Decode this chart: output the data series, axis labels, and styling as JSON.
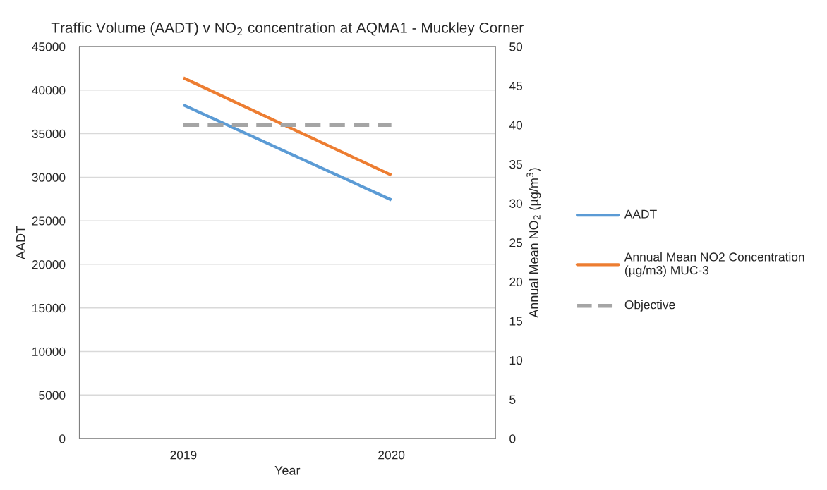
{
  "chart_data": {
    "type": "line",
    "title": "Traffic Volume (AADT) v NO$_{2}$ concentration at AQMA1 - Muckley Corner",
    "xlabel": "Year",
    "ylabel": "AADT",
    "y2label": "Annual Mean NO$_{2}$ (µg/m$^{3}$)",
    "categories": [
      "2019",
      "2020"
    ],
    "series": [
      {
        "name": "AADT",
        "color": "#5b9bd5",
        "values": [
          38300,
          27400
        ]
      },
      {
        "name": "Annual Mean NO2 Concentration (µg/m3) MUC-3",
        "color": "#ed7d31",
        "values": [
          46,
          33.6
        ],
        "axis": "y2"
      },
      {
        "name": "Objective",
        "color": "#a5a5a5",
        "values": [
          40,
          40
        ],
        "axis": "y2",
        "line_style": "dashed"
      }
    ],
    "ylim": [
      0,
      45000
    ],
    "yticks": [
      0,
      5000,
      10000,
      15000,
      20000,
      25000,
      30000,
      35000,
      40000,
      45000
    ],
    "y2lim": [
      0,
      50
    ],
    "y2ticks": [
      0,
      5,
      10,
      15,
      20,
      25,
      30,
      35,
      40,
      45,
      50
    ],
    "grid": "y",
    "legend": "right"
  }
}
